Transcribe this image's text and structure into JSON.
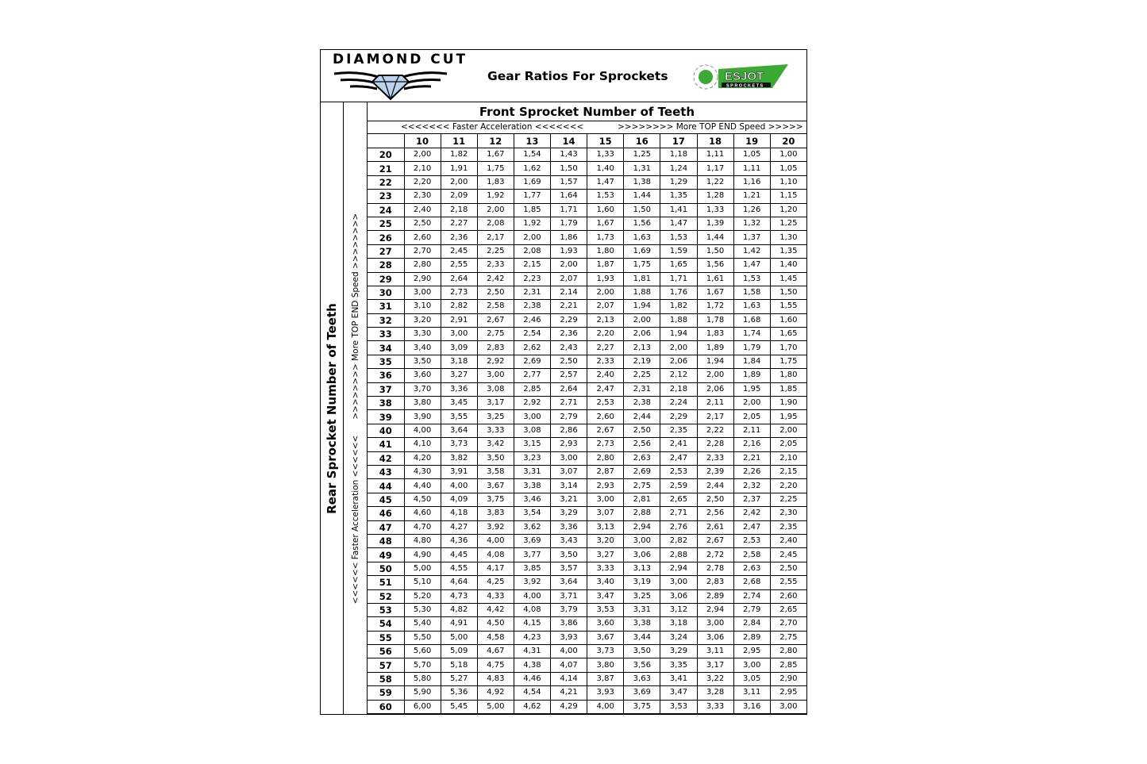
{
  "header": {
    "brand": "DIAMOND CUT",
    "title": "Gear Ratios For Sprockets",
    "partner_logo": "ESJOT",
    "partner_logo_sub": "SPROCKETS",
    "partner_color": "#3aaa35"
  },
  "front_title": "Front Sprocket Number of Teeth",
  "front_left_hint": "<<<<<<< Faster Acceleration <<<<<<<",
  "front_right_hint": ">>>>>>>> More TOP END Speed >>>>>",
  "rear_title": "Rear Sprocket Number of Teeth",
  "rear_hint": "<<<<<< Faster Acceleration <<<<<<      >>>>>>>> More TOP END Speed >>>>>>>>",
  "front_teeth": [
    "10",
    "11",
    "12",
    "13",
    "14",
    "15",
    "16",
    "17",
    "18",
    "19",
    "20"
  ],
  "rows": [
    {
      "rear": "20",
      "ratios": [
        "2,00",
        "1,82",
        "1,67",
        "1,54",
        "1,43",
        "1,33",
        "1,25",
        "1,18",
        "1,11",
        "1,05",
        "1,00"
      ]
    },
    {
      "rear": "21",
      "ratios": [
        "2,10",
        "1,91",
        "1,75",
        "1,62",
        "1,50",
        "1,40",
        "1,31",
        "1,24",
        "1,17",
        "1,11",
        "1,05"
      ]
    },
    {
      "rear": "22",
      "ratios": [
        "2,20",
        "2,00",
        "1,83",
        "1,69",
        "1,57",
        "1,47",
        "1,38",
        "1,29",
        "1,22",
        "1,16",
        "1,10"
      ]
    },
    {
      "rear": "23",
      "ratios": [
        "2,30",
        "2,09",
        "1,92",
        "1,77",
        "1,64",
        "1,53",
        "1,44",
        "1,35",
        "1,28",
        "1,21",
        "1,15"
      ]
    },
    {
      "rear": "24",
      "ratios": [
        "2,40",
        "2,18",
        "2,00",
        "1,85",
        "1,71",
        "1,60",
        "1,50",
        "1,41",
        "1,33",
        "1,26",
        "1,20"
      ]
    },
    {
      "rear": "25",
      "ratios": [
        "2,50",
        "2,27",
        "2,08",
        "1,92",
        "1,79",
        "1,67",
        "1,56",
        "1,47",
        "1,39",
        "1,32",
        "1,25"
      ]
    },
    {
      "rear": "26",
      "ratios": [
        "2,60",
        "2,36",
        "2,17",
        "2,00",
        "1,86",
        "1,73",
        "1,63",
        "1,53",
        "1,44",
        "1,37",
        "1,30"
      ]
    },
    {
      "rear": "27",
      "ratios": [
        "2,70",
        "2,45",
        "2,25",
        "2,08",
        "1,93",
        "1,80",
        "1,69",
        "1,59",
        "1,50",
        "1,42",
        "1,35"
      ]
    },
    {
      "rear": "28",
      "ratios": [
        "2,80",
        "2,55",
        "2,33",
        "2,15",
        "2,00",
        "1,87",
        "1,75",
        "1,65",
        "1,56",
        "1,47",
        "1,40"
      ]
    },
    {
      "rear": "29",
      "ratios": [
        "2,90",
        "2,64",
        "2,42",
        "2,23",
        "2,07",
        "1,93",
        "1,81",
        "1,71",
        "1,61",
        "1,53",
        "1,45"
      ]
    },
    {
      "rear": "30",
      "ratios": [
        "3,00",
        "2,73",
        "2,50",
        "2,31",
        "2,14",
        "2,00",
        "1,88",
        "1,76",
        "1,67",
        "1,58",
        "1,50"
      ]
    },
    {
      "rear": "31",
      "ratios": [
        "3,10",
        "2,82",
        "2,58",
        "2,38",
        "2,21",
        "2,07",
        "1,94",
        "1,82",
        "1,72",
        "1,63",
        "1,55"
      ]
    },
    {
      "rear": "32",
      "ratios": [
        "3,20",
        "2,91",
        "2,67",
        "2,46",
        "2,29",
        "2,13",
        "2,00",
        "1,88",
        "1,78",
        "1,68",
        "1,60"
      ]
    },
    {
      "rear": "33",
      "ratios": [
        "3,30",
        "3,00",
        "2,75",
        "2,54",
        "2,36",
        "2,20",
        "2,06",
        "1,94",
        "1,83",
        "1,74",
        "1,65"
      ]
    },
    {
      "rear": "34",
      "ratios": [
        "3,40",
        "3,09",
        "2,83",
        "2,62",
        "2,43",
        "2,27",
        "2,13",
        "2,00",
        "1,89",
        "1,79",
        "1,70"
      ]
    },
    {
      "rear": "35",
      "ratios": [
        "3,50",
        "3,18",
        "2,92",
        "2,69",
        "2,50",
        "2,33",
        "2,19",
        "2,06",
        "1,94",
        "1,84",
        "1,75"
      ]
    },
    {
      "rear": "36",
      "ratios": [
        "3,60",
        "3,27",
        "3,00",
        "2,77",
        "2,57",
        "2,40",
        "2,25",
        "2,12",
        "2,00",
        "1,89",
        "1,80"
      ]
    },
    {
      "rear": "37",
      "ratios": [
        "3,70",
        "3,36",
        "3,08",
        "2,85",
        "2,64",
        "2,47",
        "2,31",
        "2,18",
        "2,06",
        "1,95",
        "1,85"
      ]
    },
    {
      "rear": "38",
      "ratios": [
        "3,80",
        "3,45",
        "3,17",
        "2,92",
        "2,71",
        "2,53",
        "2,38",
        "2,24",
        "2,11",
        "2,00",
        "1,90"
      ]
    },
    {
      "rear": "39",
      "ratios": [
        "3,90",
        "3,55",
        "3,25",
        "3,00",
        "2,79",
        "2,60",
        "2,44",
        "2,29",
        "2,17",
        "2,05",
        "1,95"
      ]
    },
    {
      "rear": "40",
      "ratios": [
        "4,00",
        "3,64",
        "3,33",
        "3,08",
        "2,86",
        "2,67",
        "2,50",
        "2,35",
        "2,22",
        "2,11",
        "2,00"
      ]
    },
    {
      "rear": "41",
      "ratios": [
        "4,10",
        "3,73",
        "3,42",
        "3,15",
        "2,93",
        "2,73",
        "2,56",
        "2,41",
        "2,28",
        "2,16",
        "2,05"
      ]
    },
    {
      "rear": "42",
      "ratios": [
        "4,20",
        "3,82",
        "3,50",
        "3,23",
        "3,00",
        "2,80",
        "2,63",
        "2,47",
        "2,33",
        "2,21",
        "2,10"
      ]
    },
    {
      "rear": "43",
      "ratios": [
        "4,30",
        "3,91",
        "3,58",
        "3,31",
        "3,07",
        "2,87",
        "2,69",
        "2,53",
        "2,39",
        "2,26",
        "2,15"
      ]
    },
    {
      "rear": "44",
      "ratios": [
        "4,40",
        "4,00",
        "3,67",
        "3,38",
        "3,14",
        "2,93",
        "2,75",
        "2,59",
        "2,44",
        "2,32",
        "2,20"
      ]
    },
    {
      "rear": "45",
      "ratios": [
        "4,50",
        "4,09",
        "3,75",
        "3,46",
        "3,21",
        "3,00",
        "2,81",
        "2,65",
        "2,50",
        "2,37",
        "2,25"
      ]
    },
    {
      "rear": "46",
      "ratios": [
        "4,60",
        "4,18",
        "3,83",
        "3,54",
        "3,29",
        "3,07",
        "2,88",
        "2,71",
        "2,56",
        "2,42",
        "2,30"
      ]
    },
    {
      "rear": "47",
      "ratios": [
        "4,70",
        "4,27",
        "3,92",
        "3,62",
        "3,36",
        "3,13",
        "2,94",
        "2,76",
        "2,61",
        "2,47",
        "2,35"
      ]
    },
    {
      "rear": "48",
      "ratios": [
        "4,80",
        "4,36",
        "4,00",
        "3,69",
        "3,43",
        "3,20",
        "3,00",
        "2,82",
        "2,67",
        "2,53",
        "2,40"
      ]
    },
    {
      "rear": "49",
      "ratios": [
        "4,90",
        "4,45",
        "4,08",
        "3,77",
        "3,50",
        "3,27",
        "3,06",
        "2,88",
        "2,72",
        "2,58",
        "2,45"
      ]
    },
    {
      "rear": "50",
      "ratios": [
        "5,00",
        "4,55",
        "4,17",
        "3,85",
        "3,57",
        "3,33",
        "3,13",
        "2,94",
        "2,78",
        "2,63",
        "2,50"
      ]
    },
    {
      "rear": "51",
      "ratios": [
        "5,10",
        "4,64",
        "4,25",
        "3,92",
        "3,64",
        "3,40",
        "3,19",
        "3,00",
        "2,83",
        "2,68",
        "2,55"
      ]
    },
    {
      "rear": "52",
      "ratios": [
        "5,20",
        "4,73",
        "4,33",
        "4,00",
        "3,71",
        "3,47",
        "3,25",
        "3,06",
        "2,89",
        "2,74",
        "2,60"
      ]
    },
    {
      "rear": "53",
      "ratios": [
        "5,30",
        "4,82",
        "4,42",
        "4,08",
        "3,79",
        "3,53",
        "3,31",
        "3,12",
        "2,94",
        "2,79",
        "2,65"
      ]
    },
    {
      "rear": "54",
      "ratios": [
        "5,40",
        "4,91",
        "4,50",
        "4,15",
        "3,86",
        "3,60",
        "3,38",
        "3,18",
        "3,00",
        "2,84",
        "2,70"
      ]
    },
    {
      "rear": "55",
      "ratios": [
        "5,50",
        "5,00",
        "4,58",
        "4,23",
        "3,93",
        "3,67",
        "3,44",
        "3,24",
        "3,06",
        "2,89",
        "2,75"
      ]
    },
    {
      "rear": "56",
      "ratios": [
        "5,60",
        "5,09",
        "4,67",
        "4,31",
        "4,00",
        "3,73",
        "3,50",
        "3,29",
        "3,11",
        "2,95",
        "2,80"
      ]
    },
    {
      "rear": "57",
      "ratios": [
        "5,70",
        "5,18",
        "4,75",
        "4,38",
        "4,07",
        "3,80",
        "3,56",
        "3,35",
        "3,17",
        "3,00",
        "2,85"
      ]
    },
    {
      "rear": "58",
      "ratios": [
        "5,80",
        "5,27",
        "4,83",
        "4,46",
        "4,14",
        "3,87",
        "3,63",
        "3,41",
        "3,22",
        "3,05",
        "2,90"
      ]
    },
    {
      "rear": "59",
      "ratios": [
        "5,90",
        "5,36",
        "4,92",
        "4,54",
        "4,21",
        "3,93",
        "3,69",
        "3,47",
        "3,28",
        "3,11",
        "2,95"
      ]
    },
    {
      "rear": "60",
      "ratios": [
        "6,00",
        "5,45",
        "5,00",
        "4,62",
        "4,29",
        "4,00",
        "3,75",
        "3,53",
        "3,33",
        "3,16",
        "3,00"
      ]
    }
  ]
}
